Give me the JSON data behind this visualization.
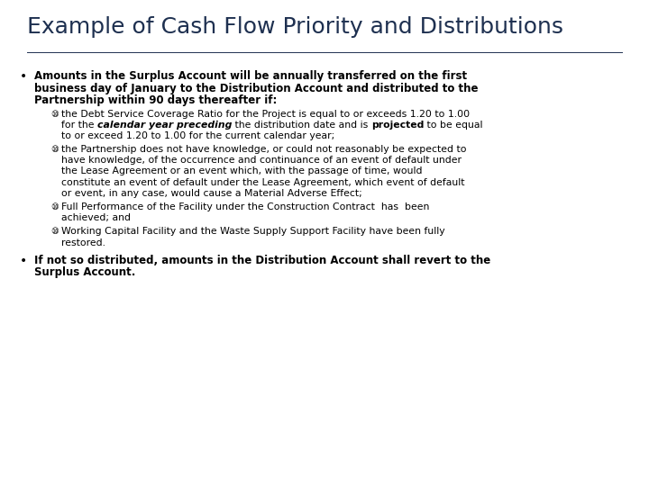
{
  "title": "Example of Cash Flow Priority and Distributions",
  "background_color": "#ffffff",
  "title_color": "#1e3050",
  "text_color": "#000000",
  "title_fontsize": 18,
  "body_fontsize": 8.5,
  "sub_fontsize": 7.8,
  "font": "DejaVu Sans",
  "sub_bullet": "⑩",
  "bullet1_lines": [
    "Amounts in the Surplus Account will be annually transferred on the first",
    "business day of January to the Distribution Account and distributed to the",
    "Partnership within 90 days thereafter if:"
  ],
  "sub1_line1": "the Debt Service Coverage Ratio for the Project is equal to or exceeds 1.20 to 1.00",
  "sub1_line2_pre": "for the ",
  "sub1_line2_bold_italic": "calendar year preceding",
  "sub1_line2_mid": " the distribution date and is ",
  "sub1_line2_bold": "projected",
  "sub1_line2_post": " to be equal",
  "sub1_line3": "to or exceed 1.20 to 1.00 for the current calendar year;",
  "sub2_lines": [
    "the Partnership does not have knowledge, or could not reasonably be expected to",
    "have knowledge, of the occurrence and continuance of an event of default under",
    "the Lease Agreement or an event which, with the passage of time, would",
    "constitute an event of default under the Lease Agreement, which event of default",
    "or event, in any case, would cause a Material Adverse Effect;"
  ],
  "sub3_lines": [
    "Full Performance of the Facility under the Construction Contract  has  been",
    "achieved; and"
  ],
  "sub4_lines": [
    "Working Capital Facility and the Waste Supply Support Facility have been fully",
    "restored."
  ],
  "bullet2_lines": [
    "If not so distributed, amounts in the Distribution Account shall revert to the",
    "Surplus Account."
  ]
}
